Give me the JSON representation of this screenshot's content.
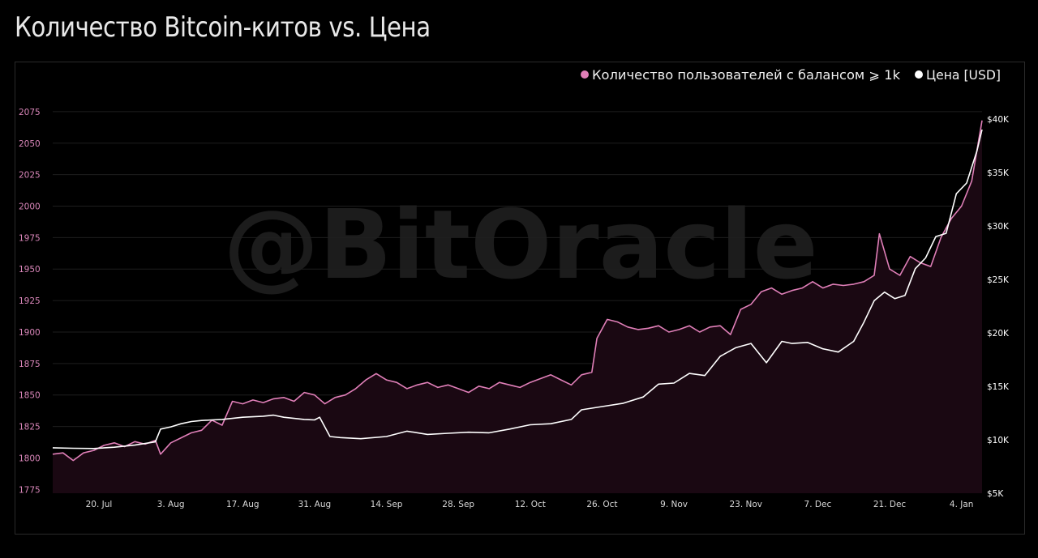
{
  "title": "Количество Bitcoin-китов vs. Цена",
  "colors": {
    "whales": "#e07fb8",
    "price": "#ffffff",
    "background": "#000000",
    "grid": "#1e1e1e",
    "area": "#1a0812",
    "left_tick": "#d986b9",
    "right_tick": "#ffffff"
  },
  "watermark": "@BitOracle",
  "chart_data": {
    "type": "line",
    "title": "Количество Bitcoin-китов vs. Цена",
    "legend_position": "top-right",
    "legend": [
      "Количество пользователей с балансом ⩾ 1k",
      "Цена [USD]"
    ],
    "x_tick_labels": [
      "20. Jul",
      "3. Aug",
      "17. Aug",
      "31. Aug",
      "14. Sep",
      "28. Sep",
      "12. Oct",
      "26. Oct",
      "9. Nov",
      "23. Nov",
      "7. Dec",
      "21. Dec",
      "4. Jan"
    ],
    "x_range": [
      "2020-07-11",
      "2021-01-08"
    ],
    "y_left": {
      "ticks": [
        "1775",
        "1800",
        "1825",
        "1850",
        "1875",
        "1900",
        "1925",
        "1950",
        "1975",
        "2000",
        "2025",
        "2050",
        "2075"
      ],
      "range": [
        1772,
        2082
      ]
    },
    "y_right": {
      "ticks": [
        "$5K",
        "$10K",
        "$15K",
        "$20K",
        "$25K",
        "$30K",
        "$35K",
        "$40K"
      ],
      "range": [
        5000,
        41500
      ]
    },
    "grid": true,
    "series": [
      {
        "name": "Количество пользователей с балансом ⩾ 1k",
        "axis": "left",
        "color": "#e07fb8",
        "points": [
          [
            "2020-07-11",
            1803
          ],
          [
            "2020-07-13",
            1804
          ],
          [
            "2020-07-15",
            1798
          ],
          [
            "2020-07-17",
            1804
          ],
          [
            "2020-07-19",
            1806
          ],
          [
            "2020-07-21",
            1810
          ],
          [
            "2020-07-23",
            1812
          ],
          [
            "2020-07-25",
            1809
          ],
          [
            "2020-07-27",
            1813
          ],
          [
            "2020-07-29",
            1811
          ],
          [
            "2020-07-31",
            1814
          ],
          [
            "2020-08-01",
            1803
          ],
          [
            "2020-08-03",
            1812
          ],
          [
            "2020-08-05",
            1816
          ],
          [
            "2020-08-07",
            1820
          ],
          [
            "2020-08-09",
            1822
          ],
          [
            "2020-08-11",
            1830
          ],
          [
            "2020-08-13",
            1826
          ],
          [
            "2020-08-15",
            1845
          ],
          [
            "2020-08-17",
            1843
          ],
          [
            "2020-08-19",
            1846
          ],
          [
            "2020-08-21",
            1844
          ],
          [
            "2020-08-23",
            1847
          ],
          [
            "2020-08-25",
            1848
          ],
          [
            "2020-08-27",
            1845
          ],
          [
            "2020-08-29",
            1852
          ],
          [
            "2020-08-31",
            1850
          ],
          [
            "2020-09-02",
            1843
          ],
          [
            "2020-09-04",
            1848
          ],
          [
            "2020-09-06",
            1850
          ],
          [
            "2020-09-08",
            1855
          ],
          [
            "2020-09-10",
            1862
          ],
          [
            "2020-09-12",
            1867
          ],
          [
            "2020-09-14",
            1862
          ],
          [
            "2020-09-16",
            1860
          ],
          [
            "2020-09-18",
            1855
          ],
          [
            "2020-09-20",
            1858
          ],
          [
            "2020-09-22",
            1860
          ],
          [
            "2020-09-24",
            1856
          ],
          [
            "2020-09-26",
            1858
          ],
          [
            "2020-09-28",
            1855
          ],
          [
            "2020-09-30",
            1852
          ],
          [
            "2020-10-02",
            1857
          ],
          [
            "2020-10-04",
            1855
          ],
          [
            "2020-10-06",
            1860
          ],
          [
            "2020-10-08",
            1858
          ],
          [
            "2020-10-10",
            1856
          ],
          [
            "2020-10-12",
            1860
          ],
          [
            "2020-10-14",
            1863
          ],
          [
            "2020-10-16",
            1866
          ],
          [
            "2020-10-18",
            1862
          ],
          [
            "2020-10-20",
            1858
          ],
          [
            "2020-10-22",
            1866
          ],
          [
            "2020-10-24",
            1868
          ],
          [
            "2020-10-25",
            1895
          ],
          [
            "2020-10-27",
            1910
          ],
          [
            "2020-10-29",
            1908
          ],
          [
            "2020-10-31",
            1904
          ],
          [
            "2020-11-02",
            1902
          ],
          [
            "2020-11-04",
            1903
          ],
          [
            "2020-11-06",
            1905
          ],
          [
            "2020-11-08",
            1900
          ],
          [
            "2020-11-10",
            1902
          ],
          [
            "2020-11-12",
            1905
          ],
          [
            "2020-11-14",
            1900
          ],
          [
            "2020-11-16",
            1904
          ],
          [
            "2020-11-18",
            1905
          ],
          [
            "2020-11-20",
            1898
          ],
          [
            "2020-11-22",
            1918
          ],
          [
            "2020-11-24",
            1922
          ],
          [
            "2020-11-26",
            1932
          ],
          [
            "2020-11-28",
            1935
          ],
          [
            "2020-11-30",
            1930
          ],
          [
            "2020-12-02",
            1933
          ],
          [
            "2020-12-04",
            1935
          ],
          [
            "2020-12-06",
            1940
          ],
          [
            "2020-12-08",
            1935
          ],
          [
            "2020-12-10",
            1938
          ],
          [
            "2020-12-12",
            1937
          ],
          [
            "2020-12-14",
            1938
          ],
          [
            "2020-12-16",
            1940
          ],
          [
            "2020-12-18",
            1945
          ],
          [
            "2020-12-19",
            1978
          ],
          [
            "2020-12-21",
            1950
          ],
          [
            "2020-12-23",
            1945
          ],
          [
            "2020-12-25",
            1960
          ],
          [
            "2020-12-27",
            1955
          ],
          [
            "2020-12-29",
            1952
          ],
          [
            "2020-12-31",
            1975
          ],
          [
            "2021-01-02",
            1990
          ],
          [
            "2021-01-04",
            2000
          ],
          [
            "2021-01-06",
            2020
          ],
          [
            "2021-01-08",
            2068
          ]
        ]
      },
      {
        "name": "Цена [USD]",
        "axis": "right",
        "color": "#ffffff",
        "points": [
          [
            "2020-07-11",
            9250
          ],
          [
            "2020-07-15",
            9200
          ],
          [
            "2020-07-19",
            9180
          ],
          [
            "2020-07-23",
            9300
          ],
          [
            "2020-07-27",
            9500
          ],
          [
            "2020-07-31",
            9800
          ],
          [
            "2020-08-01",
            11000
          ],
          [
            "2020-08-03",
            11200
          ],
          [
            "2020-08-05",
            11500
          ],
          [
            "2020-08-07",
            11700
          ],
          [
            "2020-08-09",
            11800
          ],
          [
            "2020-08-11",
            11850
          ],
          [
            "2020-08-13",
            11900
          ],
          [
            "2020-08-15",
            12000
          ],
          [
            "2020-08-17",
            12100
          ],
          [
            "2020-08-19",
            12150
          ],
          [
            "2020-08-21",
            12200
          ],
          [
            "2020-08-23",
            12300
          ],
          [
            "2020-08-25",
            12100
          ],
          [
            "2020-08-27",
            12000
          ],
          [
            "2020-08-29",
            11900
          ],
          [
            "2020-08-31",
            11850
          ],
          [
            "2020-09-01",
            12100
          ],
          [
            "2020-09-03",
            10300
          ],
          [
            "2020-09-05",
            10200
          ],
          [
            "2020-09-09",
            10100
          ],
          [
            "2020-09-14",
            10300
          ],
          [
            "2020-09-18",
            10800
          ],
          [
            "2020-09-22",
            10500
          ],
          [
            "2020-09-26",
            10600
          ],
          [
            "2020-09-30",
            10700
          ],
          [
            "2020-10-04",
            10650
          ],
          [
            "2020-10-08",
            11000
          ],
          [
            "2020-10-12",
            11400
          ],
          [
            "2020-10-16",
            11500
          ],
          [
            "2020-10-20",
            11900
          ],
          [
            "2020-10-22",
            12800
          ],
          [
            "2020-10-26",
            13100
          ],
          [
            "2020-10-30",
            13400
          ],
          [
            "2020-11-03",
            14000
          ],
          [
            "2020-11-06",
            15200
          ],
          [
            "2020-11-09",
            15300
          ],
          [
            "2020-11-12",
            16200
          ],
          [
            "2020-11-15",
            16000
          ],
          [
            "2020-11-18",
            17800
          ],
          [
            "2020-11-21",
            18600
          ],
          [
            "2020-11-24",
            19000
          ],
          [
            "2020-11-27",
            17200
          ],
          [
            "2020-11-30",
            19200
          ],
          [
            "2020-12-02",
            19000
          ],
          [
            "2020-12-05",
            19100
          ],
          [
            "2020-12-08",
            18500
          ],
          [
            "2020-12-11",
            18200
          ],
          [
            "2020-12-14",
            19200
          ],
          [
            "2020-12-16",
            21000
          ],
          [
            "2020-12-18",
            23000
          ],
          [
            "2020-12-20",
            23800
          ],
          [
            "2020-12-22",
            23200
          ],
          [
            "2020-12-24",
            23500
          ],
          [
            "2020-12-26",
            26000
          ],
          [
            "2020-12-28",
            27000
          ],
          [
            "2020-12-30",
            29000
          ],
          [
            "2021-01-01",
            29300
          ],
          [
            "2021-01-03",
            33000
          ],
          [
            "2021-01-05",
            34000
          ],
          [
            "2021-01-07",
            37000
          ],
          [
            "2021-01-08",
            39000
          ]
        ]
      }
    ]
  }
}
